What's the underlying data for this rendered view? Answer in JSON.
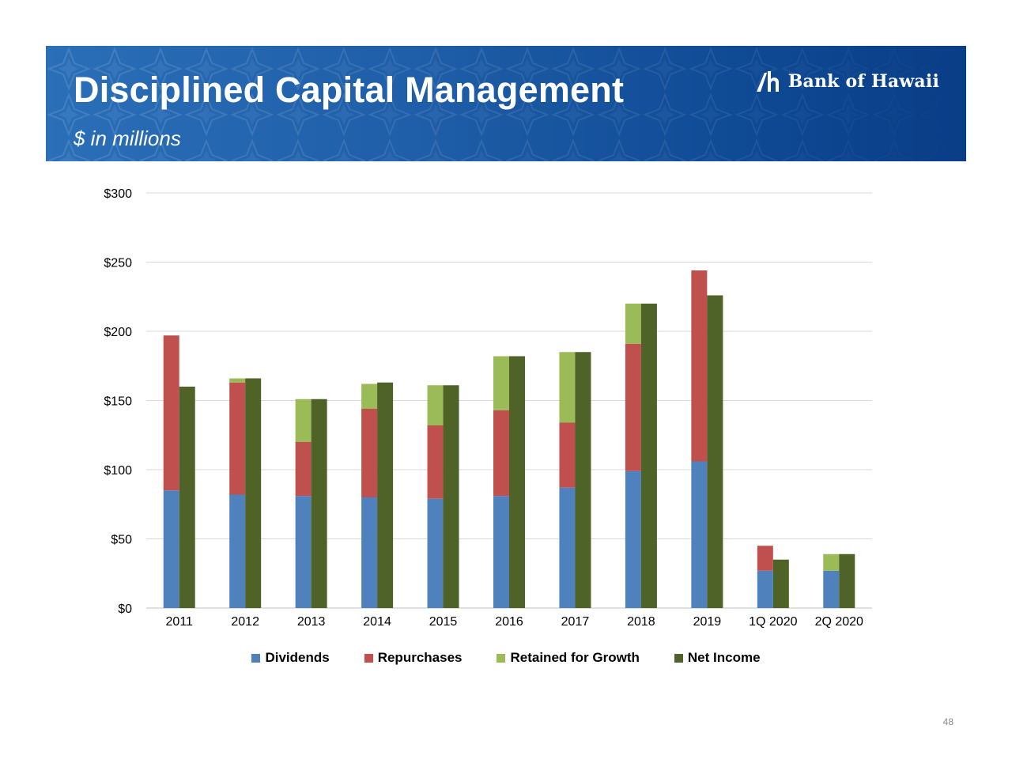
{
  "header": {
    "title": "Disciplined Capital Management",
    "subtitle": "$ in millions",
    "logo_text": "Bank of Hawaii",
    "colors": {
      "banner": "#1f5ea8",
      "text": "#ffffff"
    }
  },
  "page_number": "48",
  "chart_data": {
    "type": "bar",
    "categories": [
      "2011",
      "2012",
      "2013",
      "2014",
      "2015",
      "2016",
      "2017",
      "2018",
      "2019",
      "1Q 2020",
      "2Q 2020"
    ],
    "stacked_groups": [
      {
        "stack": "uses",
        "series": [
          {
            "name": "Dividends",
            "color": "#4f81bd",
            "values": [
              85,
              82,
              81,
              80,
              79,
              81,
              87,
              99,
              106,
              27,
              27
            ]
          },
          {
            "name": "Repurchases",
            "color": "#c0504d",
            "values": [
              112,
              81,
              39,
              64,
              53,
              62,
              47,
              92,
              138,
              18,
              0
            ]
          },
          {
            "name": "Retained for Growth",
            "color": "#9bbb59",
            "values": [
              0,
              3,
              31,
              18,
              29,
              39,
              51,
              29,
              0,
              0,
              12
            ]
          }
        ]
      },
      {
        "stack": "income",
        "series": [
          {
            "name": "Net Income",
            "color": "#4f6228",
            "values": [
              160,
              166,
              151,
              163,
              161,
              182,
              185,
              220,
              226,
              35,
              39
            ]
          }
        ]
      }
    ],
    "y_ticks": [
      "$0",
      "$50",
      "$100",
      "$150",
      "$200",
      "$250",
      "$300"
    ],
    "ylim": [
      0,
      300
    ],
    "y_step": 50,
    "grid": true,
    "legend_position": "bottom"
  }
}
